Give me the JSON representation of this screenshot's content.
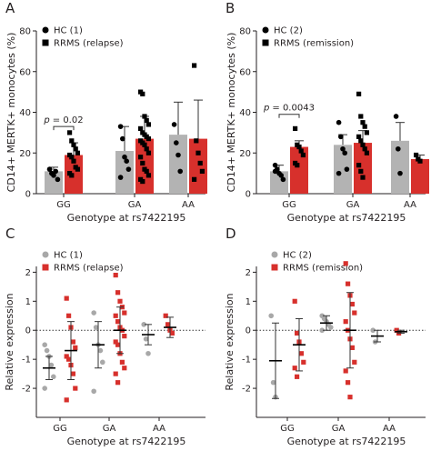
{
  "panel_letters": [
    "A",
    "B",
    "C",
    "D"
  ],
  "x_title": "Genotype at rs7422195",
  "genotypes": [
    "GG",
    "GA",
    "AA"
  ],
  "colors": {
    "hc_bar": "#b3b3b3",
    "rrms_bar": "#d7302c",
    "hc_dot": "#a8a8a8",
    "rrms_dot": "#d7302c",
    "point": "#000000",
    "axis": "#231f20"
  },
  "chart_data": [
    {
      "panel": "A",
      "type": "bar",
      "ylabel": "CD14+ MERTK+ monocytes (%)",
      "ylim": [
        0,
        80
      ],
      "yticks": [
        0,
        20,
        40,
        60,
        80
      ],
      "categories": [
        "GG",
        "GA",
        "AA"
      ],
      "legend": [
        "HC (1)",
        "RRMS (relapse)"
      ],
      "annotation": {
        "p_label": "p",
        "p_value": "= 0.02",
        "category": "GG"
      },
      "series": [
        {
          "name": "HC (1)",
          "marker": "circle",
          "mean": [
            11,
            21,
            29
          ],
          "err_top": [
            13,
            33,
            45
          ],
          "points": [
            [
              12,
              10,
              9,
              11,
              7,
              12
            ],
            [
              33,
              27,
              18,
              16,
              12,
              8
            ],
            [
              34,
              25,
              19,
              11
            ]
          ]
        },
        {
          "name": "RRMS (relapse)",
          "marker": "square",
          "mean": [
            19,
            27,
            27
          ],
          "err_top": [
            25,
            38,
            46
          ],
          "points": [
            [
              30,
              26,
              24,
              22,
              20,
              19,
              18,
              16,
              13,
              12,
              10,
              9
            ],
            [
              50,
              49,
              38,
              36,
              34,
              32,
              30,
              29,
              28,
              27,
              26,
              25,
              24,
              22,
              20,
              18,
              15,
              12,
              11,
              9,
              7,
              6
            ],
            [
              63,
              26,
              20,
              15,
              11,
              7
            ]
          ]
        }
      ]
    },
    {
      "panel": "B",
      "type": "bar",
      "ylabel": "CD14+ MERTK+ monocytes (%)",
      "ylim": [
        0,
        80
      ],
      "yticks": [
        0,
        20,
        40,
        60,
        80
      ],
      "categories": [
        "GG",
        "GA",
        "AA"
      ],
      "legend": [
        "HC (2)",
        "RRMS (remission)"
      ],
      "annotation": {
        "p_label": "p",
        "p_value": "= 0.0043",
        "category": "GG"
      },
      "series": [
        {
          "name": "HC (2)",
          "marker": "circle",
          "mean": [
            11,
            24,
            26
          ],
          "err_top": [
            14,
            29,
            35
          ],
          "points": [
            [
              14,
              12,
              10,
              9,
              7,
              11
            ],
            [
              35,
              28,
              22,
              20,
              12,
              10
            ],
            [
              38,
              22,
              10
            ]
          ]
        },
        {
          "name": "RRMS (remission)",
          "marker": "square",
          "mean": [
            23,
            25,
            17
          ],
          "err_top": [
            26,
            31,
            19
          ],
          "points": [
            [
              32,
              24,
              23,
              21,
              19,
              15,
              14
            ],
            [
              49,
              38,
              35,
              33,
              30,
              28,
              26,
              24,
              22,
              20,
              14,
              11,
              8
            ],
            [
              19,
              17,
              16
            ]
          ]
        }
      ]
    },
    {
      "panel": "C",
      "type": "scatter",
      "ylabel": "Relative expression",
      "ylim": [
        -3,
        2.2
      ],
      "yticks": [
        -2,
        -1,
        0,
        1,
        2
      ],
      "categories": [
        "GG",
        "GA",
        "AA"
      ],
      "legend": [
        "HC (1)",
        "RRMS (relapse)"
      ],
      "reference_line": 0,
      "series": [
        {
          "name": "HC (1)",
          "marker": "circle",
          "mean": [
            -1.3,
            -0.5,
            -0.15
          ],
          "sd": [
            0.4,
            0.8,
            0.35
          ],
          "points": [
            [
              -0.5,
              -0.7,
              -0.9,
              -1.2,
              -1.6,
              -2.0
            ],
            [
              0.6,
              0.1,
              -0.5,
              -0.7,
              -1.1,
              -2.1
            ],
            [
              0.2,
              -0.3,
              -0.8
            ]
          ]
        },
        {
          "name": "RRMS (relapse)",
          "marker": "square",
          "mean": [
            -0.7,
            0.0,
            0.1
          ],
          "sd": [
            1.0,
            0.8,
            0.35
          ],
          "points": [
            [
              1.1,
              0.5,
              0.1,
              -0.4,
              -0.6,
              -0.9,
              -1.0,
              -1.2,
              -1.5,
              -2.0,
              -2.4
            ],
            [
              1.9,
              1.3,
              1.0,
              0.8,
              0.6,
              0.5,
              0.3,
              0.1,
              0.0,
              -0.2,
              -0.4,
              -0.5,
              -0.8,
              -1.1,
              -1.3,
              -1.5,
              -1.8
            ],
            [
              0.5,
              0.2,
              0.0,
              -0.1
            ]
          ]
        }
      ]
    },
    {
      "panel": "D",
      "type": "scatter",
      "ylabel": "Relative expression",
      "ylim": [
        -3,
        2.2
      ],
      "yticks": [
        -2,
        -1,
        0,
        1,
        2
      ],
      "categories": [
        "GG",
        "GA",
        "AA"
      ],
      "legend": [
        "HC (2)",
        "RRMS (remission)"
      ],
      "reference_line": 0,
      "series": [
        {
          "name": "HC (2)",
          "marker": "circle",
          "mean": [
            -1.05,
            0.25,
            -0.2
          ],
          "sd": [
            1.3,
            0.25,
            0.2
          ],
          "points": [
            [
              0.5,
              -1.8,
              -2.3
            ],
            [
              0.5,
              0.4,
              0.3,
              0.2,
              0.1,
              0.0
            ],
            [
              0.0,
              -0.4
            ]
          ]
        },
        {
          "name": "RRMS (remission)",
          "marker": "square",
          "mean": [
            -0.5,
            0.0,
            -0.05
          ],
          "sd": [
            0.9,
            1.3,
            0.05
          ],
          "points": [
            [
              1.0,
              -0.1,
              -0.4,
              -0.8,
              -1.1,
              -1.3,
              -1.6
            ],
            [
              2.3,
              1.6,
              1.2,
              0.9,
              0.6,
              0.3,
              0.0,
              -0.3,
              -0.6,
              -1.1,
              -1.4,
              -1.8,
              -2.3
            ],
            [
              0.0,
              -0.1
            ]
          ]
        }
      ]
    }
  ]
}
